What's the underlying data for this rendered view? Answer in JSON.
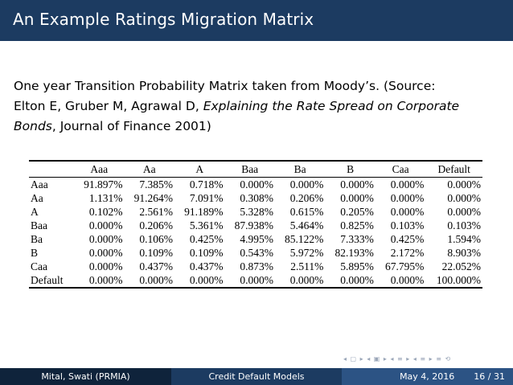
{
  "slide": {
    "title": "An Example Ratings Migration Matrix",
    "intro": {
      "line1": "One year Transition Probability Matrix taken from Moody’s. (Source:",
      "line2_prefix": "Elton E, Gruber M, Agrawal D, ",
      "italic_title_1": "Explaining the Rate Spread on Corporate",
      "italic_title_2": "Bonds",
      "line3_suffix": ", Journal of Finance 2001)"
    }
  },
  "table": {
    "columns": [
      "Aaa",
      "Aa",
      "A",
      "Baa",
      "Ba",
      "B",
      "Caa",
      "Default"
    ],
    "rows": [
      {
        "label": "Aaa",
        "values": [
          "91.897%",
          "7.385%",
          "0.718%",
          "0.000%",
          "0.000%",
          "0.000%",
          "0.000%",
          "0.000%"
        ]
      },
      {
        "label": "Aa",
        "values": [
          "1.131%",
          "91.264%",
          "7.091%",
          "0.308%",
          "0.206%",
          "0.000%",
          "0.000%",
          "0.000%"
        ]
      },
      {
        "label": "A",
        "values": [
          "0.102%",
          "2.561%",
          "91.189%",
          "5.328%",
          "0.615%",
          "0.205%",
          "0.000%",
          "0.000%"
        ]
      },
      {
        "label": "Baa",
        "values": [
          "0.000%",
          "0.206%",
          "5.361%",
          "87.938%",
          "5.464%",
          "0.825%",
          "0.103%",
          "0.103%"
        ]
      },
      {
        "label": "Ba",
        "values": [
          "0.000%",
          "0.106%",
          "0.425%",
          "4.995%",
          "85.122%",
          "7.333%",
          "0.425%",
          "1.594%"
        ]
      },
      {
        "label": "B",
        "values": [
          "0.000%",
          "0.109%",
          "0.109%",
          "0.543%",
          "5.972%",
          "82.193%",
          "2.172%",
          "8.903%"
        ]
      },
      {
        "label": "Caa",
        "values": [
          "0.000%",
          "0.437%",
          "0.437%",
          "0.873%",
          "2.511%",
          "5.895%",
          "67.795%",
          "22.052%"
        ]
      },
      {
        "label": "Default",
        "values": [
          "0.000%",
          "0.000%",
          "0.000%",
          "0.000%",
          "0.000%",
          "0.000%",
          "0.000%",
          "100.000%"
        ]
      }
    ]
  },
  "footer": {
    "author": "Mital, Swati  (PRMIA)",
    "talk_title": "Credit Default Models",
    "date": "May 4, 2016",
    "page": "16 / 31"
  },
  "colors": {
    "title_bar": "#1c3b61",
    "footer_left": "#0f233b",
    "footer_mid": "#1c3b61",
    "footer_right": "#2c5384"
  },
  "nav_icons": [
    "nav-frame-icon",
    "nav-subsection-icon",
    "nav-section-icon",
    "nav-slide-icon",
    "nav-search-icon"
  ]
}
